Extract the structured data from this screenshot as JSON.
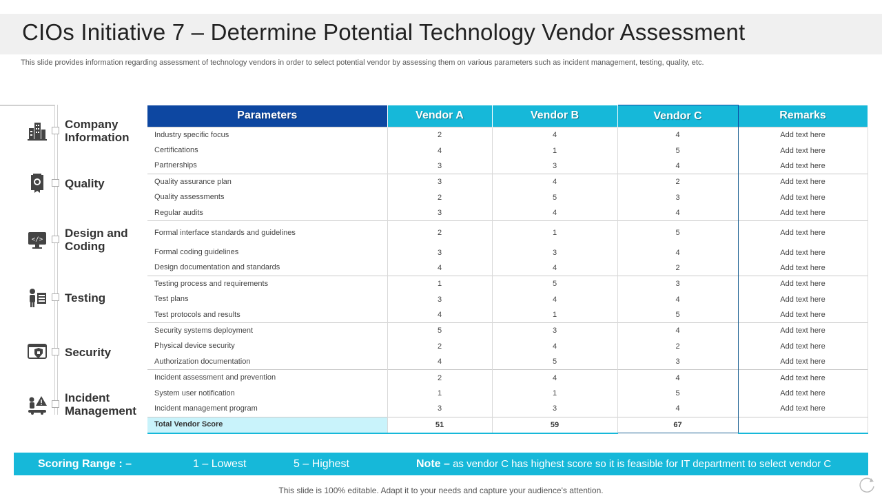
{
  "title": "CIOs Initiative 7 – Determine Potential Technology Vendor Assessment",
  "subtitle": "This slide provides information regarding assessment of technology vendors in order to select potential vendor by assessing them on various parameters such as incident management, testing, quality, etc.",
  "categories": [
    {
      "label": "Company Information",
      "icon": "building-icon"
    },
    {
      "label": "Quality",
      "icon": "quality-badge-icon"
    },
    {
      "label": "Design and Coding",
      "icon": "code-monitor-icon"
    },
    {
      "label": "Testing",
      "icon": "testing-person-icon"
    },
    {
      "label": "Security",
      "icon": "security-shield-icon"
    },
    {
      "label": "Incident Management",
      "icon": "incident-warning-icon"
    }
  ],
  "table": {
    "headers": [
      "Parameters",
      "Vendor A",
      "Vendor B",
      "Vendor C",
      "Remarks"
    ],
    "rows": [
      [
        "Industry specific focus",
        "2",
        "4",
        "4",
        "Add text here"
      ],
      [
        "Certifications",
        "4",
        "1",
        "5",
        "Add text here"
      ],
      [
        "Partnerships",
        "3",
        "3",
        "4",
        "Add text here"
      ],
      [
        "Quality assurance plan",
        "3",
        "4",
        "2",
        "Add text here"
      ],
      [
        "Quality assessments",
        "2",
        "5",
        "3",
        "Add text here"
      ],
      [
        "Regular audits",
        "3",
        "4",
        "4",
        "Add text here"
      ],
      [
        "Formal interface standards and guidelines",
        "2",
        "1",
        "5",
        "Add text here"
      ],
      [
        "Formal coding guidelines",
        "3",
        "3",
        "4",
        "Add text here"
      ],
      [
        "Design documentation and standards",
        "4",
        "4",
        "2",
        "Add text here"
      ],
      [
        "Testing process and requirements",
        "1",
        "5",
        "3",
        "Add text here"
      ],
      [
        "Test plans",
        "3",
        "4",
        "4",
        "Add text here"
      ],
      [
        "Test protocols and results",
        "4",
        "1",
        "5",
        "Add text here"
      ],
      [
        "Security systems deployment",
        "5",
        "3",
        "4",
        "Add text here"
      ],
      [
        "Physical device security",
        "2",
        "4",
        "2",
        "Add text here"
      ],
      [
        "Authorization documentation",
        "4",
        "5",
        "3",
        "Add text here"
      ],
      [
        "Incident assessment and prevention",
        "2",
        "4",
        "4",
        "Add text here"
      ],
      [
        "System user notification",
        "1",
        "1",
        "5",
        "Add text here"
      ],
      [
        "Incident management program",
        "3",
        "3",
        "4",
        "Add text here"
      ]
    ],
    "total": [
      "Total Vendor Score",
      "51",
      "59",
      "67",
      ""
    ]
  },
  "scoring": {
    "label": "Scoring Range : –",
    "lowest": "1 – Lowest",
    "highest": "5 – Highest",
    "note_label": "Note –",
    "note_text": "as vendor C has highest score so it is feasible for IT department to select vendor C"
  },
  "footer": "This slide is 100% editable. Adapt it to your needs and capture your audience's attention.",
  "colors": {
    "header_blue": "#0d47a1",
    "accent_cyan": "#16b8d9",
    "total_highlight": "#c9f3fb"
  }
}
